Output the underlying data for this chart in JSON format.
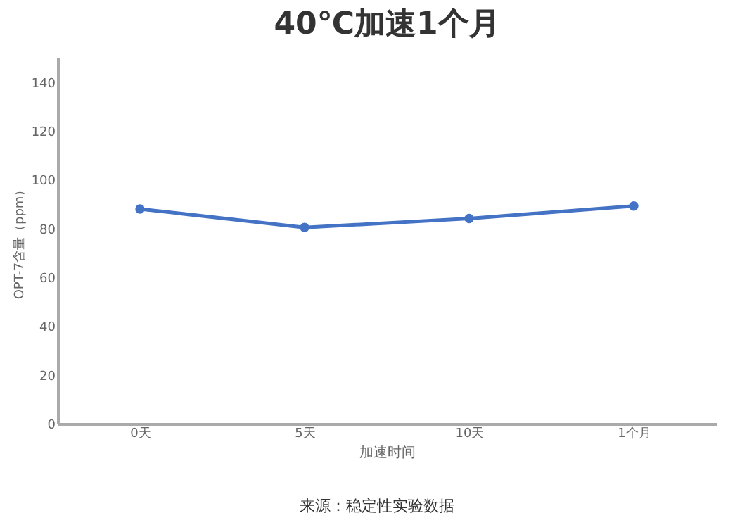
{
  "chart_data": {
    "type": "line",
    "title": "40℃加速1个月",
    "xlabel": "加速时间",
    "ylabel": "OPT-7含量（ppm）",
    "categories": [
      "0天",
      "5天",
      "10天",
      "1个月"
    ],
    "series": [
      {
        "color": "#4472c4",
        "values": [
          88,
          80.4,
          84.1,
          89.2
        ]
      }
    ],
    "ylim": [
      0,
      150
    ],
    "yticks": [
      0,
      20,
      40,
      60,
      80,
      100,
      120,
      140
    ],
    "grid": false,
    "legend": false,
    "marker": "circle",
    "annotations": [
      "来源：稳定性实验数据"
    ]
  }
}
